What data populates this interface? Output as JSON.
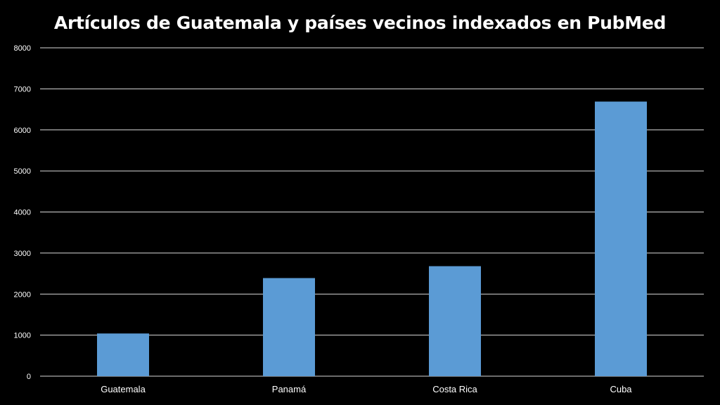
{
  "chart_data": {
    "type": "bar",
    "title": "Artículos de Guatemala y países vecinos indexados en PubMed",
    "categories": [
      "Guatemala",
      "Panamá",
      "Costa Rica",
      "Cuba"
    ],
    "values": [
      1040,
      2390,
      2680,
      6690
    ],
    "xlabel": "",
    "ylabel": "",
    "ylim": [
      0,
      8000
    ],
    "yticks": [
      "0",
      "1000",
      "2000",
      "3000",
      "4000",
      "5000",
      "6000",
      "7000",
      "8000"
    ],
    "grid": true,
    "legend": "none",
    "colors": {
      "background": "#000000",
      "bar": "#5b9bd5",
      "grid": "#d9d9d9",
      "text": "#ffffff"
    }
  }
}
